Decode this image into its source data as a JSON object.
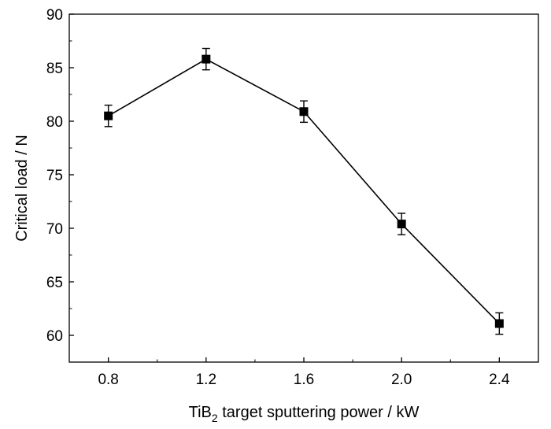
{
  "chart_data": {
    "type": "line",
    "xlabel_parts": {
      "prefix": "TiB",
      "subscript": "2",
      "suffix": " target sputtering power / kW"
    },
    "ylabel": "Critical load  / N",
    "x": [
      0.8,
      1.2,
      1.6,
      2.0,
      2.4
    ],
    "x_tick_labels": [
      "0.8",
      "1.2",
      "1.6",
      "2.0",
      "2.4"
    ],
    "xlim": [
      0.64,
      2.56
    ],
    "y_ticks": [
      60,
      65,
      70,
      75,
      80,
      85,
      90
    ],
    "ylim": [
      57.5,
      90
    ],
    "series": [
      {
        "values": [
          80.5,
          85.8,
          80.9,
          70.4,
          61.1
        ],
        "errors": [
          1.0,
          1.0,
          1.0,
          1.0,
          1.0
        ]
      }
    ],
    "grid": false,
    "legend": "none"
  }
}
